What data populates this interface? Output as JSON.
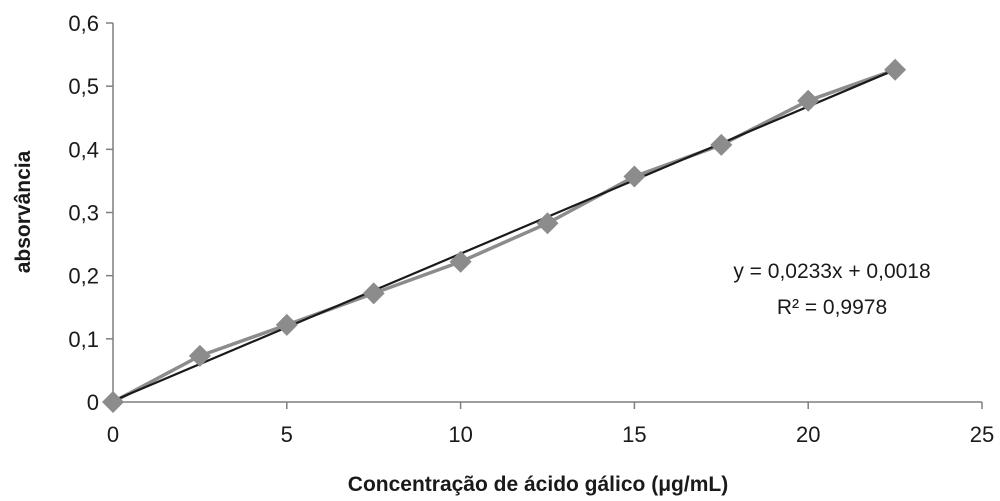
{
  "chart_data": {
    "type": "scatter",
    "title": "",
    "xlabel": "Concentração de ácido gálico (μg/mL)",
    "ylabel": "absorvância",
    "xlim": [
      0,
      25
    ],
    "ylim": [
      0,
      0.6
    ],
    "x_ticks": [
      0,
      5,
      10,
      15,
      20,
      25
    ],
    "x_tick_labels": [
      "0",
      "5",
      "10",
      "15",
      "20",
      "25"
    ],
    "y_ticks": [
      0,
      0.1,
      0.2,
      0.3,
      0.4,
      0.5,
      0.6
    ],
    "y_tick_labels": [
      "0",
      "0,1",
      "0,2",
      "0,3",
      "0,4",
      "0,5",
      "0,6"
    ],
    "grid": false,
    "legend": "none",
    "series": [
      {
        "x": [
          0,
          2.5,
          5,
          7.5,
          10,
          12.5,
          15,
          17.5,
          20,
          22.5
        ],
        "y": [
          0,
          0.073,
          0.122,
          0.172,
          0.222,
          0.283,
          0.357,
          0.407,
          0.477,
          0.526
        ],
        "marker": "diamond",
        "connected": true,
        "color": "#8c8c8c"
      }
    ],
    "trendline": {
      "type": "linear",
      "slope": 0.0233,
      "intercept": 0.0018,
      "x_range": [
        0,
        22.5
      ],
      "color": "#1a1a1a"
    },
    "annotations": {
      "equation": "y = 0,0233x + 0,0018",
      "r_squared": "R² = 0,9978"
    }
  }
}
